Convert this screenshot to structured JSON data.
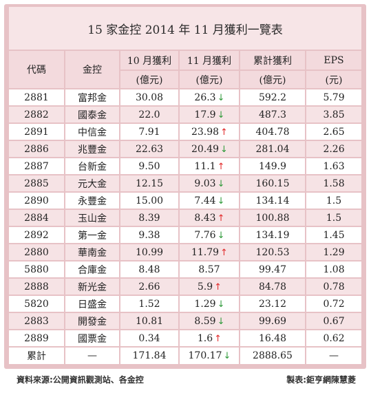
{
  "title": "15 家金控 2014 年 11 月獲利一覽表",
  "headers": {
    "code": "代碼",
    "company": "金控",
    "oct": "10 月獲利",
    "oct_unit": "(億元)",
    "nov": "11 月獲利",
    "nov_unit": "(億元)",
    "cum": "累計獲利",
    "cum_unit": "(億元)",
    "eps": "EPS",
    "eps_unit": "(元)"
  },
  "rows": [
    {
      "code": "2881",
      "name": "富邦金",
      "oct": "30.08",
      "nov": "26.3",
      "trend": "down",
      "cum": "592.2",
      "eps": "5.79"
    },
    {
      "code": "2882",
      "name": "國泰金",
      "oct": "22.0",
      "nov": "17.9",
      "trend": "down",
      "cum": "487.3",
      "eps": "3.85"
    },
    {
      "code": "2891",
      "name": "中信金",
      "oct": "7.91",
      "nov": "23.98",
      "trend": "up",
      "cum": "404.78",
      "eps": "2.65"
    },
    {
      "code": "2886",
      "name": "兆豐金",
      "oct": "22.63",
      "nov": "20.49",
      "trend": "down",
      "cum": "281.04",
      "eps": "2.26"
    },
    {
      "code": "2887",
      "name": "台新金",
      "oct": "9.50",
      "nov": "11.1",
      "trend": "up",
      "cum": "149.9",
      "eps": "1.63"
    },
    {
      "code": "2885",
      "name": "元大金",
      "oct": "12.15",
      "nov": "9.03",
      "trend": "down",
      "cum": "160.15",
      "eps": "1.58"
    },
    {
      "code": "2890",
      "name": "永豐金",
      "oct": "15.00",
      "nov": "7.44",
      "trend": "down",
      "cum": "134.14",
      "eps": "1.5"
    },
    {
      "code": "2884",
      "name": "玉山金",
      "oct": "8.39",
      "nov": "8.43",
      "trend": "up",
      "cum": "100.88",
      "eps": "1.5"
    },
    {
      "code": "2892",
      "name": "第一金",
      "oct": "9.38",
      "nov": "7.76",
      "trend": "down",
      "cum": "134.19",
      "eps": "1.45"
    },
    {
      "code": "2880",
      "name": "華南金",
      "oct": "10.99",
      "nov": "11.79",
      "trend": "up",
      "cum": "120.53",
      "eps": "1.29"
    },
    {
      "code": "5880",
      "name": "合庫金",
      "oct": "8.48",
      "nov": "8.57",
      "trend": "",
      "cum": "99.47",
      "eps": "1.08"
    },
    {
      "code": "2888",
      "name": "新光金",
      "oct": "2.66",
      "nov": "5.9",
      "trend": "up",
      "cum": "84.78",
      "eps": "0.78"
    },
    {
      "code": "5820",
      "name": "日盛金",
      "oct": "1.52",
      "nov": "1.29",
      "trend": "down",
      "cum": "23.12",
      "eps": "0.72"
    },
    {
      "code": "2883",
      "name": "開發金",
      "oct": "10.81",
      "nov": "8.59",
      "trend": "down",
      "cum": "99.69",
      "eps": "0.67"
    },
    {
      "code": "2889",
      "name": "國票金",
      "oct": "0.34",
      "nov": "1.6",
      "trend": "up",
      "cum": "16.48",
      "eps": "0.62"
    }
  ],
  "total": {
    "label": "累計",
    "dash": "—",
    "oct": "171.84",
    "nov": "170.17",
    "trend": "down",
    "cum": "2888.65",
    "eps": "—"
  },
  "arrows": {
    "up": "↑",
    "down": "↓"
  },
  "colors": {
    "up": "#e22b2b",
    "down": "#2f9a3a",
    "accent": "#e7c2c6"
  },
  "footer": {
    "source": "資料來源:公開資訊觀測站、各金控",
    "credit": "製表:鉅亨網陳慧菱"
  }
}
